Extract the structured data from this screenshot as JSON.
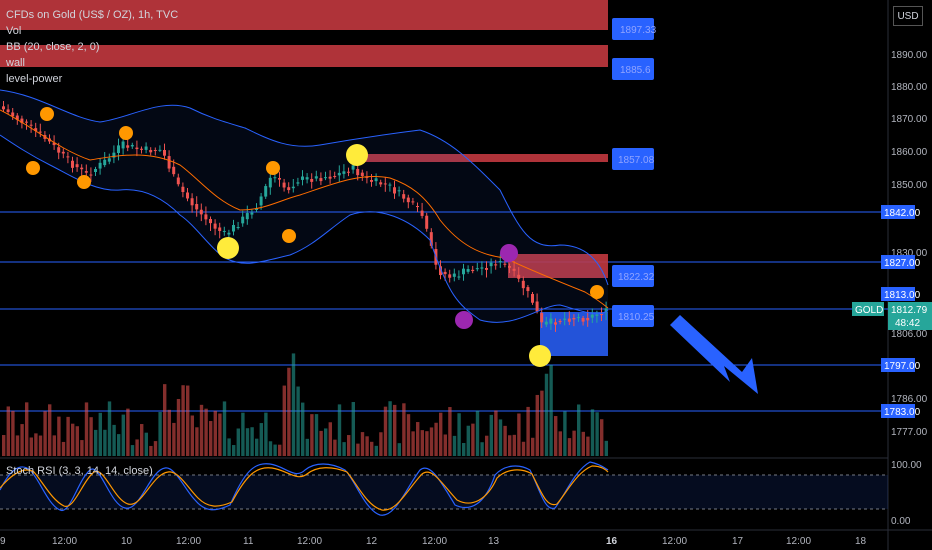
{
  "header": {
    "title": "CFDs on Gold (US$ / OZ), 1h, TVC",
    "indicators": [
      "Vol",
      "BB (20, close, 2, 0)",
      "wall",
      "level-power"
    ]
  },
  "currency_button": "USD",
  "price_axis": {
    "ticks": [
      "1890.00",
      "1880.00",
      "1870.00",
      "1860.00",
      "1850.00",
      "1830.00",
      "1806.00",
      "1786.00",
      "1777.00"
    ],
    "level_tags": [
      {
        "label": "1842.00",
        "color": "#2962ff"
      },
      {
        "label": "1827.00",
        "color": "#2962ff"
      },
      {
        "label": "1813.00",
        "color": "#2962ff"
      },
      {
        "label": "1797.00",
        "color": "#2962ff"
      },
      {
        "label": "1783.00",
        "color": "#2962ff"
      }
    ],
    "current_price": {
      "symbol": "GOLD",
      "price": "1812.79",
      "countdown": "48:42",
      "color": "#26a69a"
    }
  },
  "wall_labels": [
    {
      "label": "1897.33",
      "kind": "resistance"
    },
    {
      "label": "1885.6",
      "kind": "resistance"
    },
    {
      "label": "1857.08",
      "kind": "resistance"
    },
    {
      "label": "1822.32",
      "kind": "resistance"
    },
    {
      "label": "1810.25",
      "kind": "support"
    }
  ],
  "stoch": {
    "label": "Stoch RSI (3, 3, 14, 14, close)",
    "ticks": [
      "100.00",
      "0.00"
    ]
  },
  "time_axis": [
    "9",
    "12:00",
    "10",
    "12:00",
    "11",
    "12:00",
    "12",
    "12:00",
    "13",
    "16",
    "12:00",
    "17",
    "12:00",
    "18"
  ],
  "colors": {
    "up": "#26a69a",
    "down": "#ef5350",
    "bb": "#2962ff",
    "basis": "#ff6d00",
    "level_line": "#2962ff",
    "wall_red": "#c2393f",
    "wall_blue": "#2962ff"
  }
}
